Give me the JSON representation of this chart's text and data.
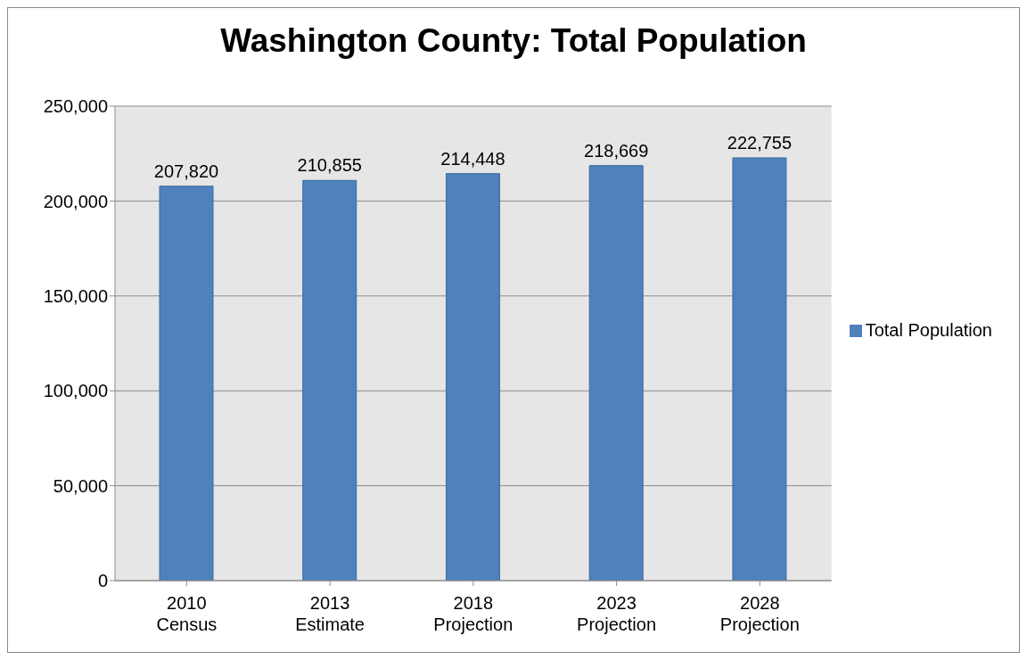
{
  "chart_data": {
    "type": "bar",
    "title": "Washington County: Total Population",
    "categories": [
      "2010\nCensus",
      "2013\nEstimate",
      "2018\nProjection",
      "2023\nProjection",
      "2028\nProjection"
    ],
    "series": [
      {
        "name": "Total Population",
        "color": "#4f81bd",
        "values": [
          207820,
          210855,
          214448,
          218669,
          222755
        ],
        "value_labels": [
          "207,820",
          "210,855",
          "214,448",
          "218,669",
          "222,755"
        ]
      }
    ],
    "ylim": [
      0,
      250000
    ],
    "yticks": [
      0,
      {
        "value": 50000,
        "label": "50,000"
      },
      {
        "value": 100000,
        "label": "100,000"
      },
      {
        "value": 150000,
        "label": "150,000"
      },
      {
        "value": 200000,
        "label": "200,000"
      },
      {
        "value": 250000,
        "label": "250,000"
      }
    ],
    "grid": "y",
    "legend": "right"
  }
}
